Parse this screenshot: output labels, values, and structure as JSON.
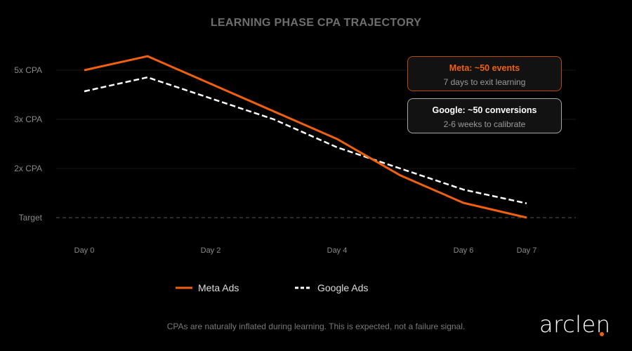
{
  "chart_data": {
    "type": "line",
    "title": "LEARNING PHASE CPA TRAJECTORY",
    "xlabel": "",
    "ylabel": "",
    "x_ticks": [
      {
        "day": 0,
        "label": "Day 0"
      },
      {
        "day": 2,
        "label": "Day 2"
      },
      {
        "day": 4,
        "label": "Day 4"
      },
      {
        "day": 6,
        "label": "Day 6"
      },
      {
        "day": 7,
        "label": "Day 7"
      }
    ],
    "y_ticks": [
      {
        "value": 1,
        "label": "Target"
      },
      {
        "value": 2,
        "label": "2x CPA"
      },
      {
        "value": 3,
        "label": "3x CPA"
      },
      {
        "value": 5,
        "label": "5x CPA"
      }
    ],
    "grid": true,
    "legend_placement": "bottom",
    "series": [
      {
        "name": "Meta Ads",
        "color": "#f0600f",
        "style": "solid",
        "x": [
          0,
          1,
          4,
          5,
          6,
          7
        ],
        "values": [
          5.0,
          5.57,
          2.6,
          1.86,
          1.3,
          1.0
        ]
      },
      {
        "name": "Google Ads",
        "color": "#ffffff",
        "style": "dashed",
        "x": [
          0,
          1,
          3,
          4,
          5,
          6,
          7
        ],
        "values": [
          4.14,
          4.71,
          3.0,
          2.43,
          2.0,
          1.57,
          1.29
        ]
      }
    ],
    "annotations": [
      {
        "title": "Meta: ~50 events",
        "subtitle": "7 days to exit learning",
        "color": "#f0600f"
      },
      {
        "title": "Google: ~50 conversions",
        "subtitle": "2-6 weeks to calibrate",
        "color": "#ffffff"
      }
    ],
    "footnote": "CPAs are naturally inflated during learning. This is expected, not a failure signal."
  },
  "brand": {
    "logo_text": "arclen",
    "accent": "#f0600f"
  }
}
